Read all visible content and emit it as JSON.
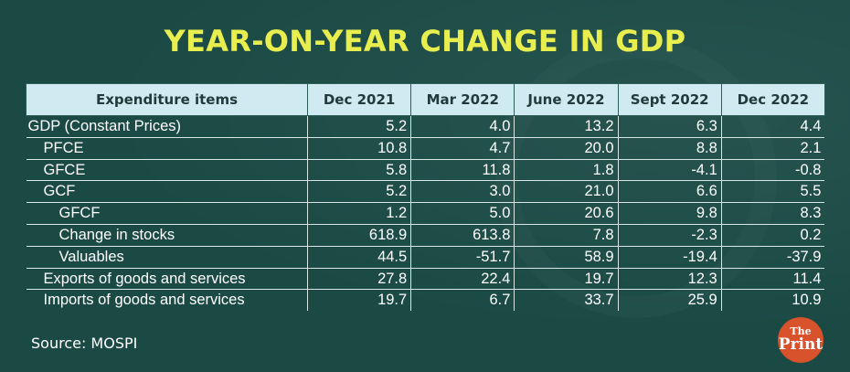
{
  "title": "YEAR-ON-YEAR CHANGE IN GDP",
  "source": "Source: MOSPI",
  "logo": {
    "line1": "The",
    "line2": "Print"
  },
  "colors": {
    "background": "#1b4a45",
    "title": "#e9ee4f",
    "header_bg": "#cfeaf1",
    "logo_bg": "#d8522c"
  },
  "chart_data": {
    "type": "table",
    "title": "YEAR-ON-YEAR CHANGE IN GDP",
    "columns": [
      "Expenditure items",
      "Dec 2021",
      "Mar 2022",
      "June 2022",
      "Sept 2022",
      "Dec 2022"
    ],
    "rows": [
      {
        "label": "GDP (Constant Prices)",
        "level": 0,
        "values": [
          "5.2",
          "4.0",
          "13.2",
          "6.3",
          "4.4"
        ]
      },
      {
        "label": "PFCE",
        "level": 1,
        "values": [
          "10.8",
          "4.7",
          "20.0",
          "8.8",
          "2.1"
        ]
      },
      {
        "label": "GFCE",
        "level": 1,
        "values": [
          "5.8",
          "11.8",
          "1.8",
          "-4.1",
          "-0.8"
        ]
      },
      {
        "label": "GCF",
        "level": 1,
        "values": [
          "5.2",
          "3.0",
          "21.0",
          "6.6",
          "5.5"
        ]
      },
      {
        "label": "GFCF",
        "level": 2,
        "values": [
          "1.2",
          "5.0",
          "20.6",
          "9.8",
          "8.3"
        ]
      },
      {
        "label": "Change in stocks",
        "level": 2,
        "values": [
          "618.9",
          "613.8",
          "7.8",
          "-2.3",
          "0.2"
        ]
      },
      {
        "label": "Valuables",
        "level": 2,
        "values": [
          "44.5",
          "-51.7",
          "58.9",
          "-19.4",
          "-37.9"
        ]
      },
      {
        "label": "Exports of goods and  services",
        "level": 1,
        "values": [
          "27.8",
          "22.4",
          "19.7",
          "12.3",
          "11.4"
        ]
      },
      {
        "label": "Imports of goods and  services",
        "level": 1,
        "values": [
          "19.7",
          "6.7",
          "33.7",
          "25.9",
          "10.9"
        ]
      }
    ],
    "source": "Source: MOSPI"
  }
}
